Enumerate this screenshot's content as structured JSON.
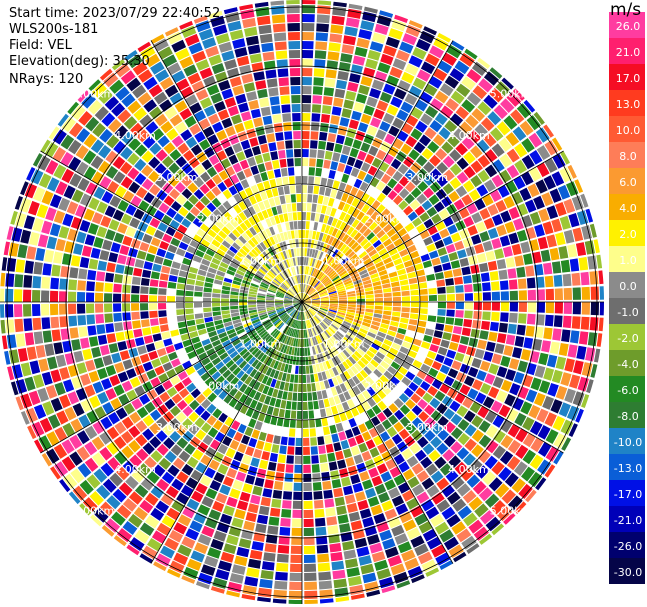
{
  "header": {
    "start_time": "Start time: 2023/07/29 22:40:52",
    "station": "WLS200s-181",
    "field": "Field: VEL",
    "elevation": "Elevation(deg): 35.30",
    "nrays": "NRays: 120"
  },
  "colorbar": {
    "unit": "m/s",
    "ticks": [
      "26.0",
      "21.0",
      "17.0",
      "13.0",
      "10.0",
      "8.0",
      "6.0",
      "4.0",
      "2.0",
      "1.0",
      "0.0",
      "-1.0",
      "-2.0",
      "-4.0",
      "-6.0",
      "-8.0",
      "-10.0",
      "-13.0",
      "-17.0",
      "-21.0",
      "-26.0",
      "-30.0"
    ],
    "colors": [
      "#ff3ca0",
      "#ff1f6e",
      "#f50d24",
      "#ff3b1f",
      "#ff5a33",
      "#fe7d58",
      "#fb9a31",
      "#f9ad00",
      "#fff100",
      "#fefe8b",
      "#8b8b8b",
      "#6e6e6e",
      "#9dc735",
      "#6e9c2b",
      "#238a23",
      "#2e7d32",
      "#1f83c7",
      "#0a5ed7",
      "#0010e6",
      "#0000b8",
      "#00006e",
      "#050548"
    ]
  },
  "chart_data": {
    "type": "ppi",
    "field": "VEL",
    "nrays": 120,
    "range_rings": [
      "1.00km",
      "2.00km",
      "3.00km",
      "4.00km",
      "5.00km"
    ],
    "ring_labels": [
      {
        "text": "1.00km",
        "angle_deg": 45
      },
      {
        "text": "1.00km",
        "angle_deg": 135
      },
      {
        "text": "1.00km",
        "angle_deg": 225
      },
      {
        "text": "1.00km",
        "angle_deg": 315
      },
      {
        "text": "2.00km",
        "angle_deg": 45
      },
      {
        "text": "2.00km",
        "angle_deg": 135
      },
      {
        "text": "2.00km",
        "angle_deg": 225
      },
      {
        "text": "2.00km",
        "angle_deg": 315
      },
      {
        "text": "3.00km",
        "angle_deg": 45
      },
      {
        "text": "3.00km",
        "angle_deg": 135
      },
      {
        "text": "3.00km",
        "angle_deg": 225
      },
      {
        "text": "3.00km",
        "angle_deg": 315
      },
      {
        "text": "4.00km",
        "angle_deg": 45
      },
      {
        "text": "4.00km",
        "angle_deg": 135
      },
      {
        "text": "4.00km",
        "angle_deg": 225
      },
      {
        "text": "4.00km",
        "angle_deg": 315
      },
      {
        "text": "5.00km",
        "angle_deg": 45
      },
      {
        "text": "5.00km",
        "angle_deg": 135
      },
      {
        "text": "5.00km",
        "angle_deg": 225
      },
      {
        "text": "5.00km",
        "angle_deg": 315
      }
    ],
    "value_range": [
      -30,
      26
    ],
    "units": "m/s"
  }
}
